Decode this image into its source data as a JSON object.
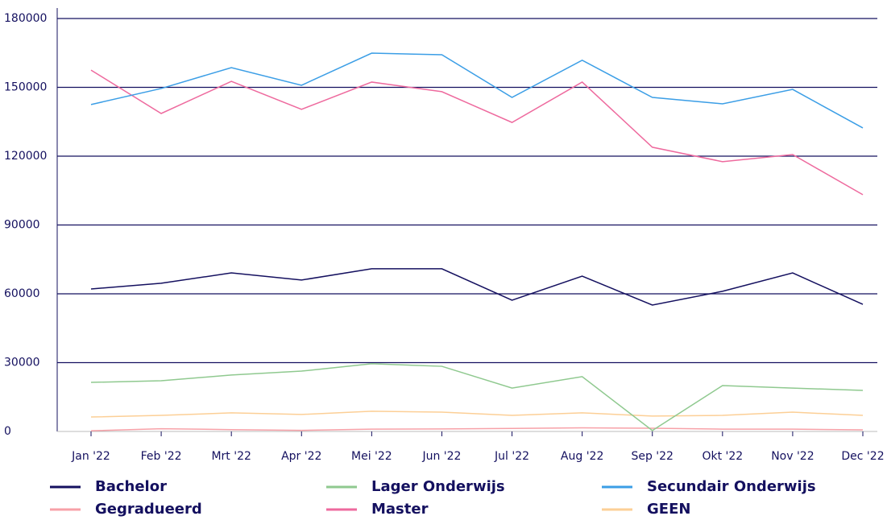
{
  "chart_data": {
    "type": "line",
    "categories": [
      "Jan '22",
      "Feb '22",
      "Mrt '22",
      "Apr '22",
      "Mei '22",
      "Jun '22",
      "Jul '22",
      "Aug '22",
      "Sep '22",
      "Okt '22",
      "Nov '22",
      "Dec '22"
    ],
    "series": [
      {
        "name": "Bachelor",
        "color": "#14105f",
        "values": [
          62100,
          64600,
          69100,
          66000,
          70900,
          70900,
          57200,
          67700,
          55100,
          61100,
          69100,
          55400
        ]
      },
      {
        "name": "Lager Onderwijs",
        "color": "#8fc98f",
        "values": [
          21400,
          22100,
          24600,
          26300,
          29500,
          28400,
          18900,
          23900,
          400,
          20000,
          18900,
          17900
        ]
      },
      {
        "name": "Secundair Onderwijs",
        "color": "#3b9ee6",
        "values": [
          142500,
          149500,
          158600,
          150900,
          164900,
          164200,
          145600,
          161800,
          145600,
          142800,
          149100,
          132300
        ]
      },
      {
        "name": "Gegradueerd",
        "color": "#f7a1a8",
        "values": [
          300,
          1200,
          800,
          500,
          1000,
          1100,
          1300,
          1600,
          1400,
          1000,
          1000,
          700
        ]
      },
      {
        "name": "Master",
        "color": "#ee6a9e",
        "values": [
          157500,
          138600,
          152600,
          140400,
          152300,
          148100,
          134700,
          152300,
          123900,
          117600,
          120700,
          103200
        ]
      },
      {
        "name": "GEEN",
        "color": "#fccf96",
        "values": [
          6300,
          7000,
          8100,
          7400,
          8800,
          8400,
          7000,
          8100,
          6700,
          7000,
          8400,
          7000
        ]
      }
    ],
    "ylim": [
      0,
      180000
    ],
    "yticks": [
      0,
      30000,
      60000,
      90000,
      120000,
      150000,
      180000
    ],
    "grid": true
  }
}
